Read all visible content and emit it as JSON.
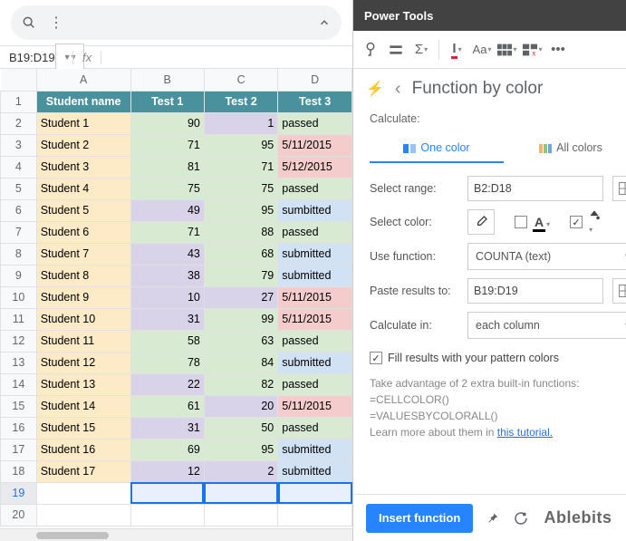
{
  "spreadsheet": {
    "namebox": "B19:D19",
    "selected_row": 19,
    "col_headers": [
      "A",
      "B",
      "C",
      "D"
    ],
    "row_numbers": [
      1,
      2,
      3,
      4,
      5,
      6,
      7,
      8,
      9,
      10,
      11,
      12,
      13,
      14,
      15,
      16,
      17,
      18,
      19,
      20
    ],
    "header_bg": "#4a919e",
    "header_row": [
      "Student name",
      "Test 1",
      "Test 2",
      "Test 3"
    ],
    "palette": {
      "yellow": "#fdebc8",
      "green": "#d9ead3",
      "lav": "#d9d3e9",
      "blue": "#d0e2f3",
      "pink": "#f4cccc"
    },
    "rows": [
      {
        "a": "Student 1",
        "ac": "yellow",
        "b": "90",
        "bc": "green",
        "c": "1",
        "cc": "lav",
        "d": "passed",
        "dc": "green"
      },
      {
        "a": "Student 2",
        "ac": "yellow",
        "b": "71",
        "bc": "green",
        "c": "95",
        "cc": "green",
        "d": "5/11/2015",
        "dc": "pink"
      },
      {
        "a": "Student 3",
        "ac": "yellow",
        "b": "81",
        "bc": "green",
        "c": "71",
        "cc": "green",
        "d": "5/12/2015",
        "dc": "pink"
      },
      {
        "a": "Student 4",
        "ac": "yellow",
        "b": "75",
        "bc": "green",
        "c": "75",
        "cc": "green",
        "d": "passed",
        "dc": "green"
      },
      {
        "a": "Student 5",
        "ac": "yellow",
        "b": "49",
        "bc": "lav",
        "c": "95",
        "cc": "green",
        "d": "sumbitted",
        "dc": "blue"
      },
      {
        "a": "Student 6",
        "ac": "yellow",
        "b": "71",
        "bc": "green",
        "c": "88",
        "cc": "green",
        "d": "passed",
        "dc": "green"
      },
      {
        "a": "Student 7",
        "ac": "yellow",
        "b": "43",
        "bc": "lav",
        "c": "68",
        "cc": "green",
        "d": "submitted",
        "dc": "blue"
      },
      {
        "a": "Student 8",
        "ac": "yellow",
        "b": "38",
        "bc": "lav",
        "c": "79",
        "cc": "green",
        "d": "submitted",
        "dc": "blue"
      },
      {
        "a": "Student 9",
        "ac": "yellow",
        "b": "10",
        "bc": "lav",
        "c": "27",
        "cc": "lav",
        "d": "5/11/2015",
        "dc": "pink"
      },
      {
        "a": "Student 10",
        "ac": "yellow",
        "b": "31",
        "bc": "lav",
        "c": "99",
        "cc": "green",
        "d": "5/11/2015",
        "dc": "pink"
      },
      {
        "a": "Student 11",
        "ac": "yellow",
        "b": "58",
        "bc": "green",
        "c": "63",
        "cc": "green",
        "d": "passed",
        "dc": "green"
      },
      {
        "a": "Student 12",
        "ac": "yellow",
        "b": "78",
        "bc": "green",
        "c": "84",
        "cc": "green",
        "d": "submitted",
        "dc": "blue"
      },
      {
        "a": "Student 13",
        "ac": "yellow",
        "b": "22",
        "bc": "lav",
        "c": "82",
        "cc": "green",
        "d": "passed",
        "dc": "green"
      },
      {
        "a": "Student 14",
        "ac": "yellow",
        "b": "61",
        "bc": "green",
        "c": "20",
        "cc": "lav",
        "d": "5/11/2015",
        "dc": "pink"
      },
      {
        "a": "Student 15",
        "ac": "yellow",
        "b": "31",
        "bc": "lav",
        "c": "50",
        "cc": "green",
        "d": "passed",
        "dc": "green"
      },
      {
        "a": "Student 16",
        "ac": "yellow",
        "b": "69",
        "bc": "green",
        "c": "95",
        "cc": "green",
        "d": "submitted",
        "dc": "blue"
      },
      {
        "a": "Student 17",
        "ac": "yellow",
        "b": "12",
        "bc": "lav",
        "c": "2",
        "cc": "lav",
        "d": "submitted",
        "dc": "blue"
      }
    ]
  },
  "panel": {
    "title": "Power Tools",
    "crumb": "Function by color",
    "calculate_label": "Calculate:",
    "tab_one": "One color",
    "tab_all": "All colors",
    "select_range_label": "Select range:",
    "select_range_value": "B2:D18",
    "select_color_label": "Select color:",
    "use_function_label": "Use function:",
    "use_function_value": "COUNTA (text)",
    "paste_label": "Paste results to:",
    "paste_value": "B19:D19",
    "calc_in_label": "Calculate in:",
    "calc_in_value": "each column",
    "fill_checkbox_label": "Fill results with your pattern colors",
    "fill_checked": true,
    "note_line1": "Take advantage of 2 extra built-in functions:",
    "note_fn1": "=CELLCOLOR()",
    "note_fn2": "=VALUESBYCOLORALL()",
    "note_line2_a": "Learn more about them in ",
    "note_link": "this tutorial.",
    "insert_button": "Insert function",
    "brand": "Ablebits",
    "colors": {
      "primary": "#2684ff",
      "header_bg": "#424242"
    }
  }
}
